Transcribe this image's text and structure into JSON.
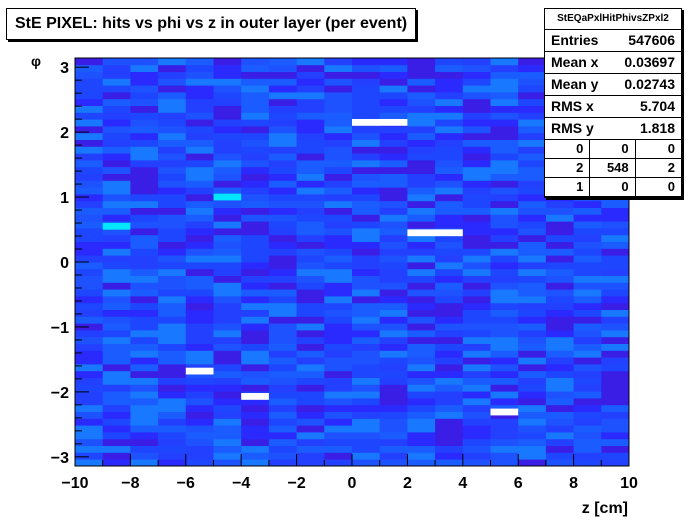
{
  "title": "StE PIXEL: hits vs phi vs z in outer layer (per event)",
  "stats": {
    "name": "StEQaPxlHitPhivsZPxl2",
    "rows": [
      {
        "key": "Entries",
        "value": "547606"
      },
      {
        "key": "Mean x",
        "value": "0.03697"
      },
      {
        "key": "Mean y",
        "value": "0.02743"
      },
      {
        "key": "RMS x",
        "value": "5.704"
      },
      {
        "key": "RMS y",
        "value": "1.818"
      }
    ],
    "overflow": [
      "0",
      "0",
      "0",
      "2",
      "548",
      "2",
      "1",
      "0",
      "0"
    ]
  },
  "chart_data": {
    "type": "heatmap",
    "title": "StE PIXEL: hits vs phi vs z in outer layer (per event)",
    "xlabel": "z [cm]",
    "ylabel": "φ",
    "xlim": [
      -10,
      10
    ],
    "ylim": [
      -3.1416,
      3.1416
    ],
    "x_ticks": [
      "−10",
      "−8",
      "−6",
      "−4",
      "−2",
      "0",
      "2",
      "4",
      "6",
      "8",
      "10"
    ],
    "y_ticks": [
      "−3",
      "−2",
      "−1",
      "0",
      "1",
      "2",
      "3"
    ],
    "x_bins": 20,
    "y_bins": 60,
    "colors": {
      "low": "#5a00e6",
      "mid": "#1a3cff",
      "high": "#00e6ff",
      "max": "#ffffff"
    },
    "hot_cells": [
      {
        "x": [
          0,
          2
        ],
        "phi": 2.15,
        "level": "max"
      },
      {
        "x": [
          2,
          4
        ],
        "phi": 0.45,
        "level": "max"
      },
      {
        "x": [
          -6,
          -5
        ],
        "phi": -1.68,
        "level": "max"
      },
      {
        "x": [
          -4,
          -3
        ],
        "phi": -2.07,
        "level": "max"
      },
      {
        "x": [
          5,
          6
        ],
        "phi": -2.31,
        "level": "max"
      },
      {
        "x": [
          -5,
          -4
        ],
        "phi": 1.0,
        "level": "high"
      },
      {
        "x": [
          -9,
          -8
        ],
        "phi": 0.55,
        "level": "high"
      }
    ]
  }
}
